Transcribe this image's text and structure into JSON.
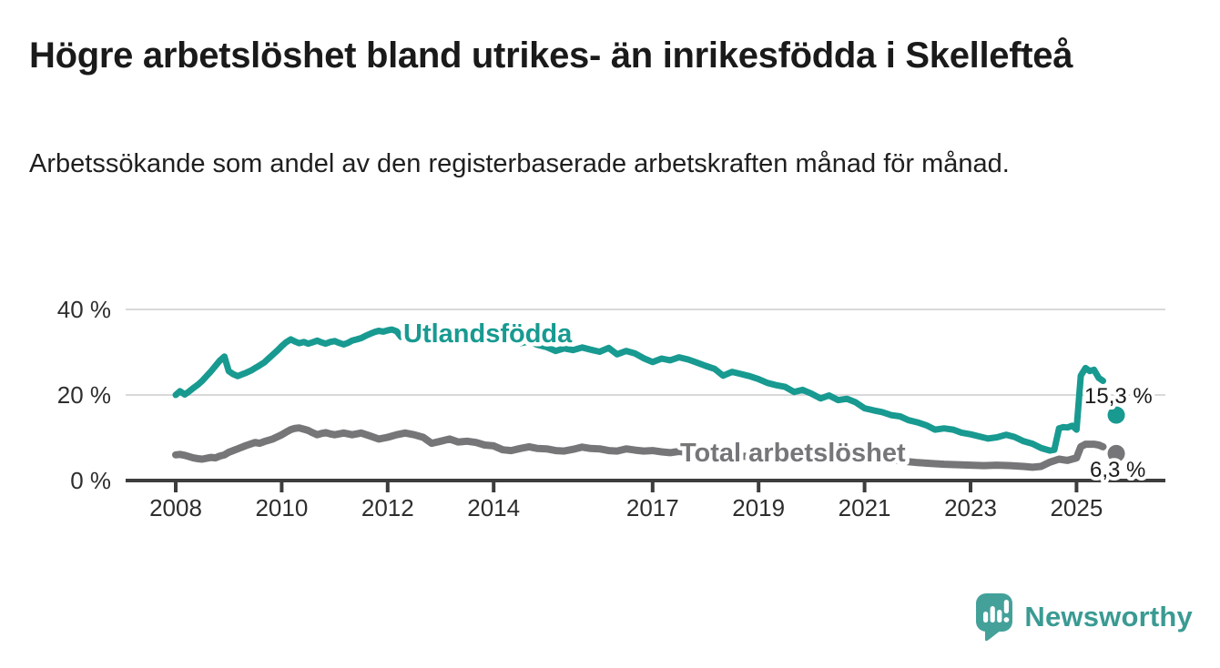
{
  "header": {
    "title": "Högre arbetslöshet bland utrikes- än inrikesfödda i Skellefteå",
    "subtitle": "Arbetssökande som andel av den registerbaserade arbetskraften månad för månad."
  },
  "footer": {
    "brand": "Newsworthy",
    "logo_icon": "speech-bubble-with-bar-chart-and-exclamation"
  },
  "colors": {
    "series_teal": "#189a91",
    "series_gray": "#767679",
    "axis": "#3d3d3d",
    "grid": "#d9d9d9",
    "text": "#1a1a1a",
    "logo_teal": "#44a19a"
  },
  "chart_data": {
    "type": "line",
    "unit": "%",
    "grid": "horizontal-only",
    "legend_position": "inline-labels-on-lines",
    "xlim": [
      2007.9,
      2026.1
    ],
    "ylim": [
      0,
      42
    ],
    "x_ticks": [
      2008,
      2010,
      2012,
      2014,
      2017,
      2019,
      2021,
      2023,
      2025
    ],
    "y_ticks": [
      {
        "value": 0,
        "label": "0 %"
      },
      {
        "value": 20,
        "label": "20 %"
      },
      {
        "value": 40,
        "label": "40 %"
      }
    ],
    "series": [
      {
        "id": "utlandsfodda",
        "name": "Utlandsfödda",
        "color": "#189a91",
        "latest": {
          "x": 2025.75,
          "value": 15.3,
          "label": "15,3 %"
        },
        "points": [
          [
            2008.0,
            20.0
          ],
          [
            2008.08,
            20.9
          ],
          [
            2008.17,
            20.1
          ],
          [
            2008.25,
            20.8
          ],
          [
            2008.33,
            21.6
          ],
          [
            2008.42,
            22.4
          ],
          [
            2008.5,
            23.3
          ],
          [
            2008.58,
            24.4
          ],
          [
            2008.67,
            25.6
          ],
          [
            2008.75,
            26.8
          ],
          [
            2008.83,
            28.0
          ],
          [
            2008.92,
            29.0
          ],
          [
            2009.0,
            25.6
          ],
          [
            2009.08,
            24.9
          ],
          [
            2009.17,
            24.4
          ],
          [
            2009.25,
            24.8
          ],
          [
            2009.33,
            25.2
          ],
          [
            2009.42,
            25.7
          ],
          [
            2009.5,
            26.3
          ],
          [
            2009.58,
            26.9
          ],
          [
            2009.67,
            27.6
          ],
          [
            2009.75,
            28.5
          ],
          [
            2009.83,
            29.4
          ],
          [
            2009.92,
            30.4
          ],
          [
            2010.0,
            31.4
          ],
          [
            2010.08,
            32.3
          ],
          [
            2010.17,
            33.0
          ],
          [
            2010.25,
            32.5
          ],
          [
            2010.33,
            32.1
          ],
          [
            2010.42,
            32.4
          ],
          [
            2010.5,
            32.0
          ],
          [
            2010.58,
            32.3
          ],
          [
            2010.67,
            32.7
          ],
          [
            2010.75,
            32.3
          ],
          [
            2010.83,
            32.0
          ],
          [
            2010.92,
            32.4
          ],
          [
            2011.0,
            32.6
          ],
          [
            2011.08,
            32.2
          ],
          [
            2011.17,
            31.8
          ],
          [
            2011.25,
            32.2
          ],
          [
            2011.33,
            32.7
          ],
          [
            2011.42,
            33.0
          ],
          [
            2011.5,
            33.3
          ],
          [
            2011.58,
            33.8
          ],
          [
            2011.67,
            34.3
          ],
          [
            2011.75,
            34.7
          ],
          [
            2011.83,
            35.0
          ],
          [
            2011.92,
            34.8
          ],
          [
            2012.0,
            35.1
          ],
          [
            2012.08,
            35.3
          ],
          [
            2012.17,
            34.9
          ],
          [
            2012.25,
            33.6
          ],
          [
            2012.33,
            34.0
          ],
          [
            2012.42,
            34.6
          ],
          [
            2012.5,
            34.2
          ],
          [
            2012.58,
            33.8
          ],
          [
            2012.67,
            34.1
          ],
          [
            2012.75,
            33.7
          ],
          [
            2012.83,
            33.9
          ],
          [
            2012.92,
            34.1
          ],
          [
            2013.0,
            34.3
          ],
          [
            2013.17,
            33.5
          ],
          [
            2013.33,
            33.1
          ],
          [
            2013.5,
            33.5
          ],
          [
            2013.67,
            32.9
          ],
          [
            2013.83,
            33.2
          ],
          [
            2014.0,
            32.7
          ],
          [
            2014.17,
            32.3
          ],
          [
            2014.33,
            32.8
          ],
          [
            2014.5,
            32.1
          ],
          [
            2014.67,
            32.5
          ],
          [
            2014.83,
            31.7
          ],
          [
            2015.0,
            31.2
          ],
          [
            2015.17,
            30.3
          ],
          [
            2015.33,
            30.9
          ],
          [
            2015.5,
            30.5
          ],
          [
            2015.67,
            31.1
          ],
          [
            2015.83,
            30.6
          ],
          [
            2016.0,
            30.1
          ],
          [
            2016.17,
            31.0
          ],
          [
            2016.33,
            29.5
          ],
          [
            2016.5,
            30.3
          ],
          [
            2016.67,
            29.7
          ],
          [
            2016.83,
            28.6
          ],
          [
            2017.0,
            27.7
          ],
          [
            2017.17,
            28.5
          ],
          [
            2017.33,
            28.1
          ],
          [
            2017.5,
            28.8
          ],
          [
            2017.67,
            28.3
          ],
          [
            2017.83,
            27.6
          ],
          [
            2018.0,
            26.8
          ],
          [
            2018.17,
            26.1
          ],
          [
            2018.33,
            24.5
          ],
          [
            2018.5,
            25.4
          ],
          [
            2018.67,
            24.9
          ],
          [
            2018.83,
            24.4
          ],
          [
            2019.0,
            23.7
          ],
          [
            2019.17,
            22.8
          ],
          [
            2019.33,
            22.3
          ],
          [
            2019.5,
            21.9
          ],
          [
            2019.67,
            20.7
          ],
          [
            2019.83,
            21.2
          ],
          [
            2020.0,
            20.3
          ],
          [
            2020.17,
            19.2
          ],
          [
            2020.33,
            19.9
          ],
          [
            2020.5,
            18.8
          ],
          [
            2020.67,
            19.1
          ],
          [
            2020.83,
            18.3
          ],
          [
            2021.0,
            16.9
          ],
          [
            2021.17,
            16.4
          ],
          [
            2021.33,
            16.0
          ],
          [
            2021.5,
            15.3
          ],
          [
            2021.67,
            15.0
          ],
          [
            2021.83,
            14.1
          ],
          [
            2022.0,
            13.6
          ],
          [
            2022.17,
            12.9
          ],
          [
            2022.33,
            11.9
          ],
          [
            2022.5,
            12.2
          ],
          [
            2022.67,
            11.9
          ],
          [
            2022.83,
            11.2
          ],
          [
            2023.0,
            10.8
          ],
          [
            2023.17,
            10.3
          ],
          [
            2023.33,
            9.8
          ],
          [
            2023.5,
            10.1
          ],
          [
            2023.67,
            10.7
          ],
          [
            2023.83,
            10.2
          ],
          [
            2024.0,
            9.2
          ],
          [
            2024.17,
            8.6
          ],
          [
            2024.33,
            7.6
          ],
          [
            2024.5,
            7.0
          ],
          [
            2024.58,
            7.2
          ],
          [
            2024.67,
            12.2
          ],
          [
            2024.75,
            12.5
          ],
          [
            2024.83,
            12.4
          ],
          [
            2024.92,
            12.8
          ],
          [
            2025.0,
            11.9
          ],
          [
            2025.08,
            24.5
          ],
          [
            2025.17,
            26.3
          ],
          [
            2025.25,
            25.6
          ],
          [
            2025.33,
            25.9
          ],
          [
            2025.42,
            24.0
          ],
          [
            2025.5,
            23.3
          ]
        ]
      },
      {
        "id": "total-arbetsloshet",
        "name": "Total arbetslöshet",
        "color": "#767679",
        "latest": {
          "x": 2025.75,
          "value": 6.3,
          "label": "6,3 %"
        },
        "points": [
          [
            2008.0,
            6.0
          ],
          [
            2008.08,
            6.1
          ],
          [
            2008.17,
            5.9
          ],
          [
            2008.25,
            5.6
          ],
          [
            2008.33,
            5.3
          ],
          [
            2008.42,
            5.1
          ],
          [
            2008.5,
            5.0
          ],
          [
            2008.58,
            5.2
          ],
          [
            2008.67,
            5.4
          ],
          [
            2008.75,
            5.3
          ],
          [
            2008.83,
            5.7
          ],
          [
            2008.92,
            6.0
          ],
          [
            2009.0,
            6.6
          ],
          [
            2009.17,
            7.4
          ],
          [
            2009.33,
            8.2
          ],
          [
            2009.5,
            8.9
          ],
          [
            2009.58,
            8.7
          ],
          [
            2009.67,
            9.1
          ],
          [
            2009.83,
            9.7
          ],
          [
            2010.0,
            10.7
          ],
          [
            2010.08,
            11.3
          ],
          [
            2010.17,
            11.9
          ],
          [
            2010.25,
            12.2
          ],
          [
            2010.33,
            12.3
          ],
          [
            2010.42,
            12.0
          ],
          [
            2010.5,
            11.7
          ],
          [
            2010.58,
            11.2
          ],
          [
            2010.67,
            10.7
          ],
          [
            2010.75,
            11.0
          ],
          [
            2010.83,
            11.2
          ],
          [
            2010.92,
            10.9
          ],
          [
            2011.0,
            10.7
          ],
          [
            2011.17,
            11.1
          ],
          [
            2011.33,
            10.7
          ],
          [
            2011.5,
            11.1
          ],
          [
            2011.67,
            10.4
          ],
          [
            2011.83,
            9.7
          ],
          [
            2012.0,
            10.1
          ],
          [
            2012.17,
            10.7
          ],
          [
            2012.33,
            11.1
          ],
          [
            2012.5,
            10.7
          ],
          [
            2012.67,
            10.1
          ],
          [
            2012.83,
            8.7
          ],
          [
            2013.0,
            9.2
          ],
          [
            2013.17,
            9.7
          ],
          [
            2013.33,
            9.0
          ],
          [
            2013.5,
            9.2
          ],
          [
            2013.67,
            8.9
          ],
          [
            2013.83,
            8.3
          ],
          [
            2014.0,
            8.1
          ],
          [
            2014.17,
            7.2
          ],
          [
            2014.33,
            7.0
          ],
          [
            2014.5,
            7.5
          ],
          [
            2014.67,
            7.9
          ],
          [
            2014.83,
            7.5
          ],
          [
            2015.0,
            7.4
          ],
          [
            2015.17,
            7.0
          ],
          [
            2015.33,
            6.9
          ],
          [
            2015.5,
            7.3
          ],
          [
            2015.67,
            7.8
          ],
          [
            2015.83,
            7.5
          ],
          [
            2016.0,
            7.4
          ],
          [
            2016.17,
            7.0
          ],
          [
            2016.33,
            6.9
          ],
          [
            2016.5,
            7.4
          ],
          [
            2016.67,
            7.1
          ],
          [
            2016.83,
            6.9
          ],
          [
            2017.0,
            7.0
          ],
          [
            2017.17,
            6.7
          ],
          [
            2017.33,
            6.5
          ],
          [
            2017.5,
            6.8
          ],
          [
            2017.75,
            6.4
          ],
          [
            2018.0,
            6.2
          ],
          [
            2018.33,
            5.9
          ],
          [
            2018.67,
            5.7
          ],
          [
            2019.0,
            5.6
          ],
          [
            2019.33,
            5.4
          ],
          [
            2019.67,
            5.5
          ],
          [
            2020.0,
            5.9
          ],
          [
            2020.25,
            6.6
          ],
          [
            2020.5,
            6.4
          ],
          [
            2020.75,
            6.0
          ],
          [
            2021.0,
            5.6
          ],
          [
            2021.33,
            5.1
          ],
          [
            2021.67,
            4.6
          ],
          [
            2022.0,
            4.2
          ],
          [
            2022.25,
            4.0
          ],
          [
            2022.5,
            3.8
          ],
          [
            2022.75,
            3.7
          ],
          [
            2023.0,
            3.6
          ],
          [
            2023.25,
            3.5
          ],
          [
            2023.5,
            3.6
          ],
          [
            2023.75,
            3.5
          ],
          [
            2024.0,
            3.3
          ],
          [
            2024.17,
            3.1
          ],
          [
            2024.33,
            3.3
          ],
          [
            2024.5,
            4.3
          ],
          [
            2024.67,
            5.0
          ],
          [
            2024.83,
            4.7
          ],
          [
            2025.0,
            5.3
          ],
          [
            2025.08,
            7.9
          ],
          [
            2025.17,
            8.5
          ],
          [
            2025.33,
            8.5
          ],
          [
            2025.42,
            8.3
          ],
          [
            2025.5,
            7.9
          ]
        ]
      }
    ]
  }
}
